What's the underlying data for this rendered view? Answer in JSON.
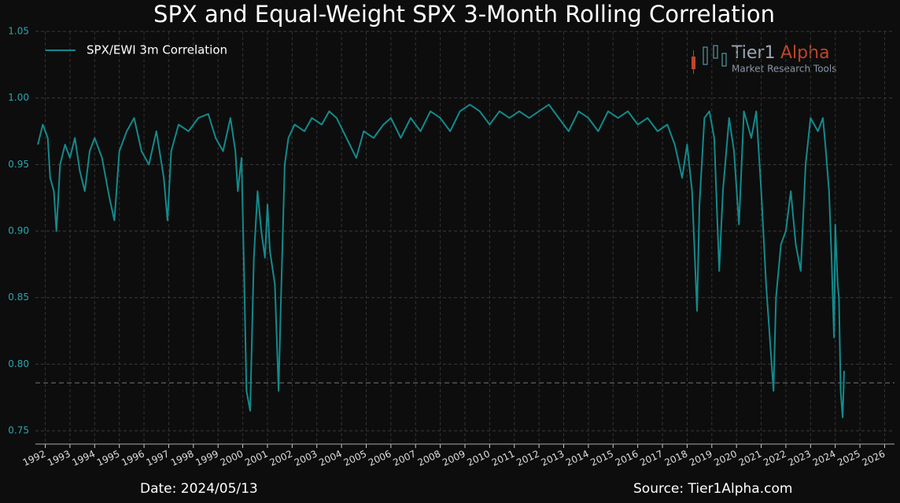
{
  "chart_data": {
    "type": "line",
    "title": "SPX and Equal-Weight SPX 3-Month Rolling Correlation",
    "x": [
      1991.7,
      1991.9,
      1992.1,
      1992.2,
      1992.35,
      1992.45,
      1992.6,
      1992.8,
      1993.0,
      1993.2,
      1993.4,
      1993.6,
      1993.8,
      1994.0,
      1994.3,
      1994.6,
      1994.8,
      1995.0,
      1995.3,
      1995.6,
      1995.9,
      1996.2,
      1996.5,
      1996.8,
      1996.95,
      1997.1,
      1997.4,
      1997.8,
      1998.2,
      1998.6,
      1998.9,
      1999.2,
      1999.5,
      1999.7,
      1999.8,
      1999.95,
      2000.05,
      2000.15,
      2000.3,
      2000.45,
      2000.6,
      2000.75,
      2000.9,
      2001.0,
      2001.1,
      2001.3,
      2001.45,
      2001.55,
      2001.7,
      2001.85,
      2002.1,
      2002.5,
      2002.8,
      2003.2,
      2003.5,
      2003.8,
      2004.2,
      2004.6,
      2004.9,
      2005.3,
      2005.7,
      2006.0,
      2006.4,
      2006.8,
      2007.2,
      2007.6,
      2008.0,
      2008.4,
      2008.8,
      2009.2,
      2009.6,
      2010.0,
      2010.4,
      2010.8,
      2011.2,
      2011.6,
      2012.0,
      2012.4,
      2012.8,
      2013.2,
      2013.6,
      2014.0,
      2014.4,
      2014.8,
      2015.2,
      2015.6,
      2016.0,
      2016.4,
      2016.8,
      2017.2,
      2017.5,
      2017.8,
      2018.0,
      2018.2,
      2018.4,
      2018.5,
      2018.7,
      2018.9,
      2019.1,
      2019.3,
      2019.45,
      2019.7,
      2019.9,
      2020.1,
      2020.3,
      2020.6,
      2020.8,
      2021.0,
      2021.2,
      2021.35,
      2021.5,
      2021.6,
      2021.8,
      2022.0,
      2022.2,
      2022.4,
      2022.6,
      2022.8,
      2023.0,
      2023.3,
      2023.5,
      2023.6,
      2023.75,
      2023.85,
      2023.95,
      2024.0,
      2024.1,
      2024.15,
      2024.22,
      2024.3,
      2024.36
    ],
    "series": [
      {
        "name": "SPX/EWI 3m Correlation",
        "color": "#138a8c",
        "values": [
          0.965,
          0.98,
          0.97,
          0.94,
          0.93,
          0.9,
          0.95,
          0.965,
          0.955,
          0.97,
          0.945,
          0.93,
          0.96,
          0.97,
          0.955,
          0.925,
          0.908,
          0.96,
          0.975,
          0.985,
          0.96,
          0.95,
          0.975,
          0.94,
          0.908,
          0.96,
          0.98,
          0.975,
          0.985,
          0.988,
          0.97,
          0.96,
          0.985,
          0.96,
          0.93,
          0.955,
          0.87,
          0.78,
          0.765,
          0.88,
          0.93,
          0.9,
          0.88,
          0.92,
          0.885,
          0.86,
          0.78,
          0.85,
          0.95,
          0.97,
          0.98,
          0.975,
          0.985,
          0.98,
          0.99,
          0.985,
          0.97,
          0.955,
          0.975,
          0.97,
          0.98,
          0.985,
          0.97,
          0.985,
          0.975,
          0.99,
          0.985,
          0.975,
          0.99,
          0.995,
          0.99,
          0.98,
          0.99,
          0.985,
          0.99,
          0.985,
          0.99,
          0.995,
          0.985,
          0.975,
          0.99,
          0.985,
          0.975,
          0.99,
          0.985,
          0.99,
          0.98,
          0.985,
          0.975,
          0.98,
          0.965,
          0.94,
          0.965,
          0.93,
          0.84,
          0.92,
          0.985,
          0.99,
          0.97,
          0.87,
          0.93,
          0.985,
          0.96,
          0.905,
          0.99,
          0.97,
          0.99,
          0.93,
          0.86,
          0.82,
          0.78,
          0.85,
          0.89,
          0.9,
          0.93,
          0.89,
          0.87,
          0.95,
          0.985,
          0.975,
          0.985,
          0.965,
          0.93,
          0.88,
          0.82,
          0.905,
          0.86,
          0.85,
          0.78,
          0.76,
          0.795
        ]
      }
    ],
    "xlim": [
      1991.6,
      2026.4
    ],
    "xticks": [
      1992,
      1993,
      1994,
      1995,
      1996,
      1997,
      1998,
      1999,
      2000,
      2001,
      2002,
      2003,
      2004,
      2005,
      2006,
      2007,
      2008,
      2009,
      2010,
      2011,
      2012,
      2013,
      2014,
      2015,
      2016,
      2017,
      2018,
      2019,
      2020,
      2021,
      2022,
      2023,
      2024,
      2025,
      2026
    ],
    "ylim": [
      0.74,
      1.05
    ],
    "yticks": [
      0.75,
      {
        "value": 0.8,
        "label": "0.80"
      },
      0.85,
      {
        "value": 0.9,
        "label": "0.90"
      },
      0.95,
      {
        "value": 1,
        "label": "1.00"
      },
      1.05
    ],
    "hline": 0.786,
    "grid": true,
    "legend": "upper left"
  },
  "logo": {
    "name": "Tier1",
    "accent": "Alpha",
    "tagline": "Market Research Tools"
  },
  "footer": {
    "date": "Date: 2024/05/13",
    "source": "Source: Tier1Alpha.com"
  }
}
